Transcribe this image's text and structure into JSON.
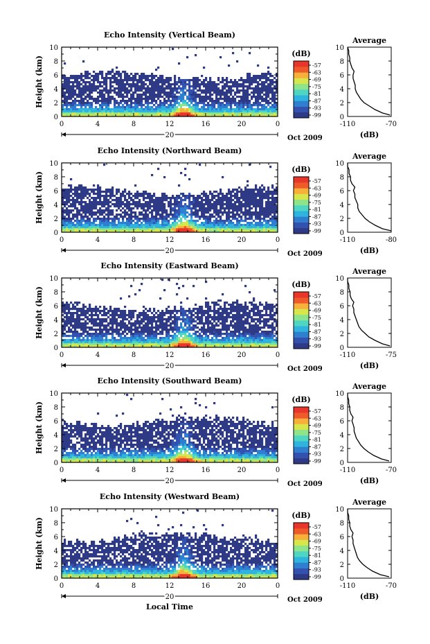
{
  "figure": {
    "x_title": "Local Time",
    "colors": {
      "background": "#ffffff",
      "axis": "#000000",
      "colormap": [
        "#2e3a86",
        "#3352b0",
        "#2f7fd0",
        "#2fb4df",
        "#4fd6c2",
        "#8ee48b",
        "#d7e64a",
        "#f7b03a",
        "#ef5a2a",
        "#e8362a"
      ]
    }
  },
  "chart_data": [
    {
      "type": "heatmap",
      "title": "Echo Intensity (Vertical Beam)",
      "ylabel": "Height (km)",
      "x_ticks": [
        "0",
        "4",
        "8",
        "12",
        "16",
        "20",
        "0"
      ],
      "y_ticks": [
        "0",
        "2",
        "4",
        "6",
        "8",
        "10"
      ],
      "xlim": [
        0,
        24
      ],
      "ylim": [
        0,
        10
      ],
      "date_label": "20",
      "date_suffix": "Oct 2009",
      "colorbar": {
        "unit": "(dB)",
        "labels": [
          "-57",
          "-63",
          "-69",
          "-75",
          "-81",
          "-87",
          "-93",
          "-99"
        ],
        "range": [
          -99,
          -57
        ]
      },
      "avg_profile": {
        "title": "Average",
        "xlabel": "(dB)",
        "x_ticks": [
          "-110",
          "-70"
        ],
        "y_ticks": [
          "0",
          "2",
          "4",
          "6",
          "8",
          "10"
        ],
        "xlim": [
          -110,
          -70
        ],
        "ylim": [
          0,
          10
        ],
        "points": [
          [
            0.2,
            -71
          ],
          [
            0.5,
            -78
          ],
          [
            1.0,
            -85
          ],
          [
            1.5,
            -90
          ],
          [
            2.0,
            -95
          ],
          [
            2.5,
            -98
          ],
          [
            3.0,
            -100
          ],
          [
            3.5,
            -102
          ],
          [
            4.0,
            -103
          ],
          [
            4.5,
            -103
          ],
          [
            5.0,
            -104
          ],
          [
            5.5,
            -105
          ],
          [
            6.0,
            -105
          ],
          [
            6.5,
            -104
          ],
          [
            7.0,
            -106
          ],
          [
            7.5,
            -107
          ],
          [
            8.0,
            -108
          ],
          [
            8.5,
            -108
          ],
          [
            9.0,
            -109
          ],
          [
            9.5,
            -109
          ],
          [
            10.0,
            -110
          ]
        ]
      }
    },
    {
      "type": "heatmap",
      "title": "Echo Intensity (Northward Beam)",
      "ylabel": "Height (km)",
      "x_ticks": [
        "0",
        "4",
        "8",
        "12",
        "16",
        "20",
        "0"
      ],
      "y_ticks": [
        "0",
        "2",
        "4",
        "6",
        "8",
        "10"
      ],
      "xlim": [
        0,
        24
      ],
      "ylim": [
        0,
        10
      ],
      "date_label": "20",
      "date_suffix": "Oct 2009",
      "colorbar": {
        "unit": "(dB)",
        "labels": [
          "-57",
          "-63",
          "-69",
          "-75",
          "-81",
          "-87",
          "-93",
          "-99"
        ],
        "range": [
          -99,
          -57
        ]
      },
      "avg_profile": {
        "title": "Average",
        "xlabel": "(dB)",
        "x_ticks": [
          "-110",
          "-80"
        ],
        "y_ticks": [
          "0",
          "2",
          "4",
          "6",
          "8",
          "10"
        ],
        "xlim": [
          -110,
          -80
        ],
        "ylim": [
          0,
          10
        ],
        "points": [
          [
            0.2,
            -80
          ],
          [
            0.5,
            -86
          ],
          [
            1.0,
            -91
          ],
          [
            1.5,
            -95
          ],
          [
            2.0,
            -98
          ],
          [
            2.5,
            -100
          ],
          [
            3.0,
            -102
          ],
          [
            3.5,
            -103
          ],
          [
            4.0,
            -103
          ],
          [
            4.5,
            -104
          ],
          [
            5.0,
            -105
          ],
          [
            5.5,
            -105
          ],
          [
            6.0,
            -106
          ],
          [
            6.5,
            -105
          ],
          [
            7.0,
            -107
          ],
          [
            7.5,
            -108
          ],
          [
            8.0,
            -108
          ],
          [
            8.5,
            -109
          ],
          [
            9.0,
            -109
          ],
          [
            9.5,
            -110
          ],
          [
            10.0,
            -110
          ]
        ]
      }
    },
    {
      "type": "heatmap",
      "title": "Echo Intensity (Eastward Beam)",
      "ylabel": "Height (km)",
      "x_ticks": [
        "0",
        "4",
        "8",
        "12",
        "16",
        "20",
        "0"
      ],
      "y_ticks": [
        "0",
        "2",
        "4",
        "6",
        "8",
        "10"
      ],
      "xlim": [
        0,
        24
      ],
      "ylim": [
        0,
        10
      ],
      "date_label": "20",
      "date_suffix": "Oct 2009",
      "colorbar": {
        "unit": "(dB)",
        "labels": [
          "-57",
          "-63",
          "-69",
          "-75",
          "-81",
          "-87",
          "-93",
          "-99"
        ],
        "range": [
          -99,
          -57
        ]
      },
      "avg_profile": {
        "title": "Average",
        "xlabel": "(dB)",
        "x_ticks": [
          "-110",
          "-75"
        ],
        "y_ticks": [
          "0",
          "2",
          "4",
          "6",
          "8",
          "10"
        ],
        "xlim": [
          -110,
          -75
        ],
        "ylim": [
          0,
          10
        ],
        "points": [
          [
            0.2,
            -76
          ],
          [
            0.5,
            -82
          ],
          [
            1.0,
            -88
          ],
          [
            1.5,
            -93
          ],
          [
            2.0,
            -96
          ],
          [
            2.5,
            -99
          ],
          [
            3.0,
            -101
          ],
          [
            3.5,
            -102
          ],
          [
            4.0,
            -103
          ],
          [
            4.5,
            -104
          ],
          [
            5.0,
            -105
          ],
          [
            5.5,
            -105
          ],
          [
            6.0,
            -106
          ],
          [
            6.5,
            -105
          ],
          [
            7.0,
            -107
          ],
          [
            7.5,
            -108
          ],
          [
            8.0,
            -108
          ],
          [
            8.5,
            -109
          ],
          [
            9.0,
            -109
          ],
          [
            9.5,
            -110
          ],
          [
            10.0,
            -110
          ]
        ]
      }
    },
    {
      "type": "heatmap",
      "title": "Echo Intensity (Southward Beam)",
      "ylabel": "Height (km)",
      "x_ticks": [
        "0",
        "4",
        "8",
        "12",
        "16",
        "20",
        "0"
      ],
      "y_ticks": [
        "0",
        "2",
        "4",
        "6",
        "8",
        "10"
      ],
      "xlim": [
        0,
        24
      ],
      "ylim": [
        0,
        10
      ],
      "date_label": "20",
      "date_suffix": "Oct 2009",
      "colorbar": {
        "unit": "(dB)",
        "labels": [
          "-57",
          "-63",
          "-69",
          "-75",
          "-81",
          "-87",
          "-93",
          "-99"
        ],
        "range": [
          -99,
          -57
        ]
      },
      "avg_profile": {
        "title": "Average",
        "xlabel": "(dB)",
        "x_ticks": [
          "-110",
          "-70"
        ],
        "y_ticks": [
          "0",
          "2",
          "4",
          "6",
          "8",
          "10"
        ],
        "xlim": [
          -110,
          -70
        ],
        "ylim": [
          0,
          10
        ],
        "points": [
          [
            0.2,
            -72
          ],
          [
            0.5,
            -79
          ],
          [
            1.0,
            -86
          ],
          [
            1.5,
            -91
          ],
          [
            2.0,
            -95
          ],
          [
            2.5,
            -98
          ],
          [
            3.0,
            -100
          ],
          [
            3.5,
            -102
          ],
          [
            4.0,
            -103
          ],
          [
            4.5,
            -104
          ],
          [
            5.0,
            -104
          ],
          [
            5.5,
            -105
          ],
          [
            6.0,
            -106
          ],
          [
            6.5,
            -105
          ],
          [
            7.0,
            -107
          ],
          [
            7.5,
            -108
          ],
          [
            8.0,
            -108
          ],
          [
            8.5,
            -109
          ],
          [
            9.0,
            -109
          ],
          [
            9.5,
            -110
          ],
          [
            10.0,
            -110
          ]
        ]
      }
    },
    {
      "type": "heatmap",
      "title": "Echo Intensity (Westward Beam)",
      "ylabel": "Height (km)",
      "x_ticks": [
        "0",
        "4",
        "8",
        "12",
        "16",
        "20",
        "0"
      ],
      "y_ticks": [
        "0",
        "2",
        "4",
        "6",
        "8",
        "10"
      ],
      "xlim": [
        0,
        24
      ],
      "ylim": [
        0,
        10
      ],
      "date_label": "20",
      "date_suffix": "Oct 2009",
      "colorbar": {
        "unit": "(dB)",
        "labels": [
          "-57",
          "-63",
          "-69",
          "-75",
          "-81",
          "-87",
          "-93",
          "-99"
        ],
        "range": [
          -99,
          -57
        ]
      },
      "avg_profile": {
        "title": "Average",
        "xlabel": "(dB)",
        "x_ticks": [
          "-110",
          "-70"
        ],
        "y_ticks": [
          "0",
          "2",
          "4",
          "6",
          "8",
          "10"
        ],
        "xlim": [
          -110,
          -70
        ],
        "ylim": [
          0,
          10
        ],
        "points": [
          [
            0.2,
            -72
          ],
          [
            0.5,
            -80
          ],
          [
            1.0,
            -87
          ],
          [
            1.5,
            -92
          ],
          [
            2.0,
            -96
          ],
          [
            2.5,
            -99
          ],
          [
            3.0,
            -101
          ],
          [
            3.5,
            -102
          ],
          [
            4.0,
            -103
          ],
          [
            4.5,
            -104
          ],
          [
            5.0,
            -105
          ],
          [
            5.5,
            -105
          ],
          [
            6.0,
            -106
          ],
          [
            6.5,
            -105
          ],
          [
            7.0,
            -107
          ],
          [
            7.5,
            -108
          ],
          [
            8.0,
            -108
          ],
          [
            8.5,
            -109
          ],
          [
            9.0,
            -109
          ],
          [
            9.5,
            -110
          ],
          [
            10.0,
            -110
          ]
        ]
      }
    }
  ]
}
